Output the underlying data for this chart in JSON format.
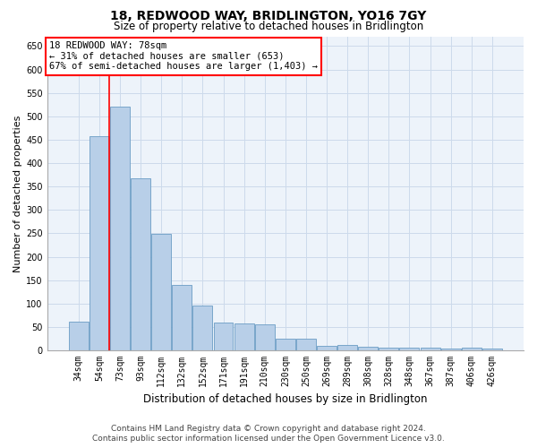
{
  "title1": "18, REDWOOD WAY, BRIDLINGTON, YO16 7GY",
  "title2": "Size of property relative to detached houses in Bridlington",
  "xlabel": "Distribution of detached houses by size in Bridlington",
  "ylabel": "Number of detached properties",
  "footer1": "Contains HM Land Registry data © Crown copyright and database right 2024.",
  "footer2": "Contains public sector information licensed under the Open Government Licence v3.0.",
  "annotation_title": "18 REDWOOD WAY: 78sqm",
  "annotation_line1": "← 31% of detached houses are smaller (653)",
  "annotation_line2": "67% of semi-detached houses are larger (1,403) →",
  "bar_categories": [
    "34sqm",
    "54sqm",
    "73sqm",
    "93sqm",
    "112sqm",
    "132sqm",
    "152sqm",
    "171sqm",
    "191sqm",
    "210sqm",
    "230sqm",
    "250sqm",
    "269sqm",
    "289sqm",
    "308sqm",
    "328sqm",
    "348sqm",
    "367sqm",
    "387sqm",
    "406sqm",
    "426sqm"
  ],
  "bar_values": [
    62,
    458,
    520,
    368,
    248,
    140,
    95,
    60,
    57,
    55,
    25,
    25,
    10,
    12,
    8,
    6,
    6,
    5,
    3,
    5,
    3
  ],
  "bar_color": "#b8cfe8",
  "bar_edge_color": "#6a9cc4",
  "grid_color": "#ccdaeb",
  "background_color": "#edf3fa",
  "redline_x": 2.0,
  "ylim": [
    0,
    670
  ],
  "yticks": [
    0,
    50,
    100,
    150,
    200,
    250,
    300,
    350,
    400,
    450,
    500,
    550,
    600,
    650
  ],
  "title1_fontsize": 10,
  "title2_fontsize": 8.5,
  "xlabel_fontsize": 8.5,
  "ylabel_fontsize": 8,
  "tick_fontsize": 7,
  "ann_fontsize": 7.5,
  "footer_fontsize": 6.5
}
